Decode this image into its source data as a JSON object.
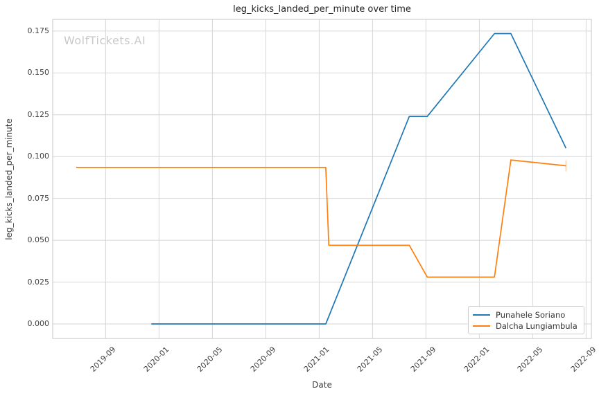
{
  "watermark": "WolfTickets.AI",
  "colors": {
    "series_blue": "#1f77b4",
    "series_orange": "#ff7f0e",
    "orange_end_cap": "rgba(255,127,14,0.35)",
    "grid": "#d6d6d6",
    "spine": "#c6c6c6",
    "title_text": "#1f1f1f",
    "tick_text": "#3d3d3d",
    "watermark_text": "#c9c9c9",
    "legend_border": "#cccccc"
  },
  "chart_data": {
    "type": "line",
    "title": "leg_kicks_landed_per_minute over time",
    "xlabel": "Date",
    "ylabel": "leg_kicks_landed_per_minute",
    "grid": true,
    "legend_position": "lower right",
    "xlim": [
      "2019-05-02",
      "2022-09-13"
    ],
    "ylim": [
      -0.0087,
      0.182
    ],
    "x_ticks": [
      "2019-09",
      "2020-01",
      "2020-05",
      "2020-09",
      "2021-01",
      "2021-05",
      "2021-09",
      "2022-01",
      "2022-05",
      "2022-09"
    ],
    "y_ticks": [
      "0.000",
      "0.025",
      "0.050",
      "0.075",
      "0.100",
      "0.125",
      "0.150",
      "0.175"
    ],
    "series": [
      {
        "name": "Punahele Soriano",
        "color": "#1f77b4",
        "end_cap": false,
        "points": [
          [
            "2019-12-14",
            0.0
          ],
          [
            "2021-01-16",
            0.0
          ],
          [
            "2021-07-24",
            0.124
          ],
          [
            "2021-09-04",
            0.124
          ],
          [
            "2022-02-05",
            0.1735
          ],
          [
            "2022-03-12",
            0.1735
          ],
          [
            "2022-07-16",
            0.105
          ]
        ]
      },
      {
        "name": "Dalcha Lungiambula",
        "color": "#ff7f0e",
        "end_cap": true,
        "points": [
          [
            "2019-06-25",
            0.0935
          ],
          [
            "2021-01-16",
            0.0935
          ],
          [
            "2021-01-23",
            0.047
          ],
          [
            "2021-07-24",
            0.047
          ],
          [
            "2021-09-04",
            0.028
          ],
          [
            "2022-02-05",
            0.028
          ],
          [
            "2022-03-12",
            0.098
          ],
          [
            "2022-07-16",
            0.0945
          ]
        ]
      }
    ]
  }
}
